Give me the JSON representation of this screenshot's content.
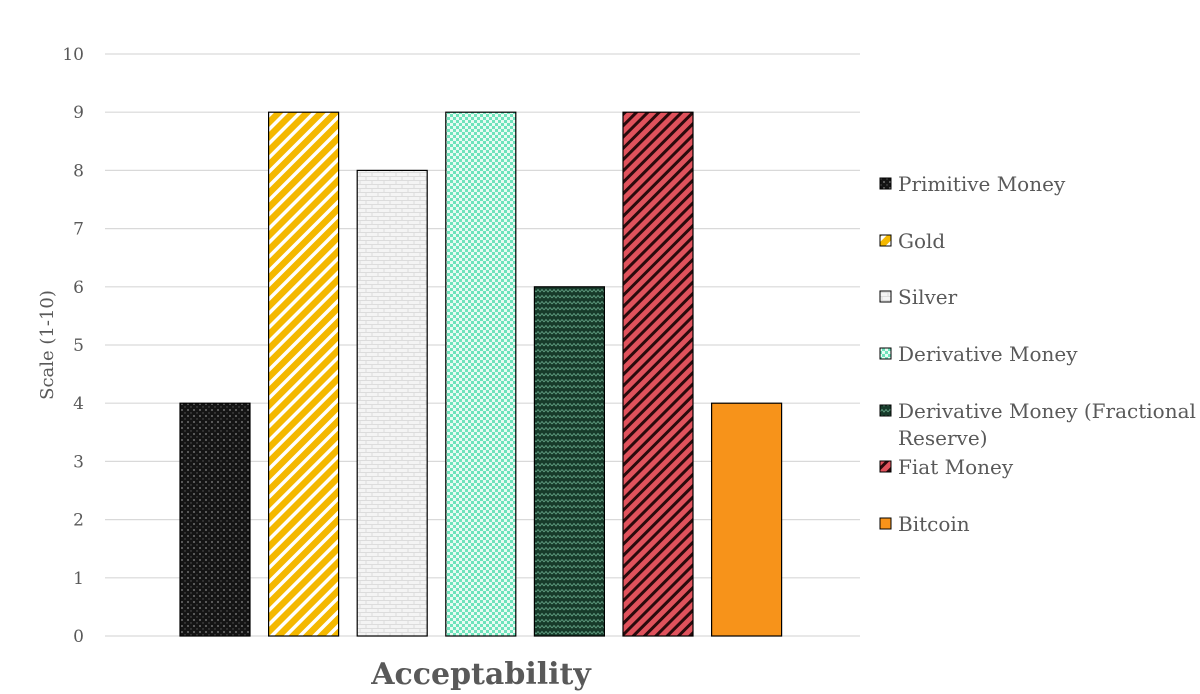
{
  "chart_data": {
    "type": "bar",
    "title": "",
    "xlabel": "Acceptability",
    "ylabel": "Scale (1-10)",
    "ylim": [
      0,
      10
    ],
    "yticks": [
      "0",
      "1",
      "2",
      "3",
      "4",
      "5",
      "6",
      "7",
      "8",
      "9",
      "10"
    ],
    "grid": true,
    "legend_position": "right",
    "series": [
      {
        "name": "Primitive Money",
        "values": [
          4
        ],
        "color": "#1c1c1c",
        "pattern": "dots"
      },
      {
        "name": "Gold",
        "values": [
          9
        ],
        "color": "#f4b800",
        "pattern": "diagonal-wide"
      },
      {
        "name": "Silver",
        "values": [
          8
        ],
        "color": "#f2f2f2",
        "pattern": "brick"
      },
      {
        "name": "Derivative Money",
        "values": [
          9
        ],
        "color": "#7fe8c4",
        "pattern": "checker"
      },
      {
        "name": "Derivative Money (Fractional Reserve)",
        "values": [
          6
        ],
        "color": "#1f4a36",
        "pattern": "zigzag"
      },
      {
        "name": "Fiat Money",
        "values": [
          9
        ],
        "color": "#e0525c",
        "pattern": "diagonal-dark"
      },
      {
        "name": "Bitcoin",
        "values": [
          4
        ],
        "color": "#f7931a",
        "pattern": "solid"
      }
    ]
  }
}
